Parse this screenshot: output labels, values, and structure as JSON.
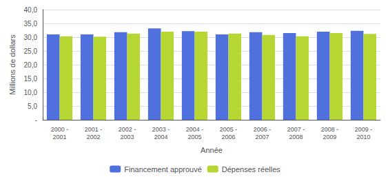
{
  "chart_data": {
    "type": "bar",
    "xlabel": "Année",
    "ylabel": "Millions de dollars",
    "categories": [
      "2000 -\n2001",
      "2001 -\n2002",
      "2002 -\n2003",
      "2003 -\n2004",
      "2004 -\n2005",
      "2005 -\n2006",
      "2006 -\n2007",
      "2007 -\n2008",
      "2008 -\n2009",
      "2009 -\n2010"
    ],
    "series": [
      {
        "name": "Financement approuvé",
        "values": [
          31.0,
          31.0,
          31.8,
          33.2,
          32.2,
          31.0,
          31.8,
          31.5,
          32.0,
          32.3
        ]
      },
      {
        "name": "Dépenses réelles",
        "values": [
          30.3,
          30.2,
          31.3,
          32.0,
          32.0,
          31.3,
          30.8,
          30.3,
          31.5,
          31.2
        ]
      }
    ],
    "ylim": [
      0,
      40
    ],
    "yticks": [
      {
        "value": 0,
        "label": "-"
      },
      {
        "value": 5.0,
        "label": "5,0"
      },
      {
        "value": 10.0,
        "label": "10,0"
      },
      {
        "value": 15.0,
        "label": "15,0"
      },
      {
        "value": 20.0,
        "label": "20,0"
      },
      {
        "value": 25.0,
        "label": "25,0"
      },
      {
        "value": 30.0,
        "label": "30,0"
      },
      {
        "value": 35.0,
        "label": "35,0"
      },
      {
        "value": 40.0,
        "label": "40,0"
      }
    ],
    "grid": true,
    "legend": "bottom"
  }
}
